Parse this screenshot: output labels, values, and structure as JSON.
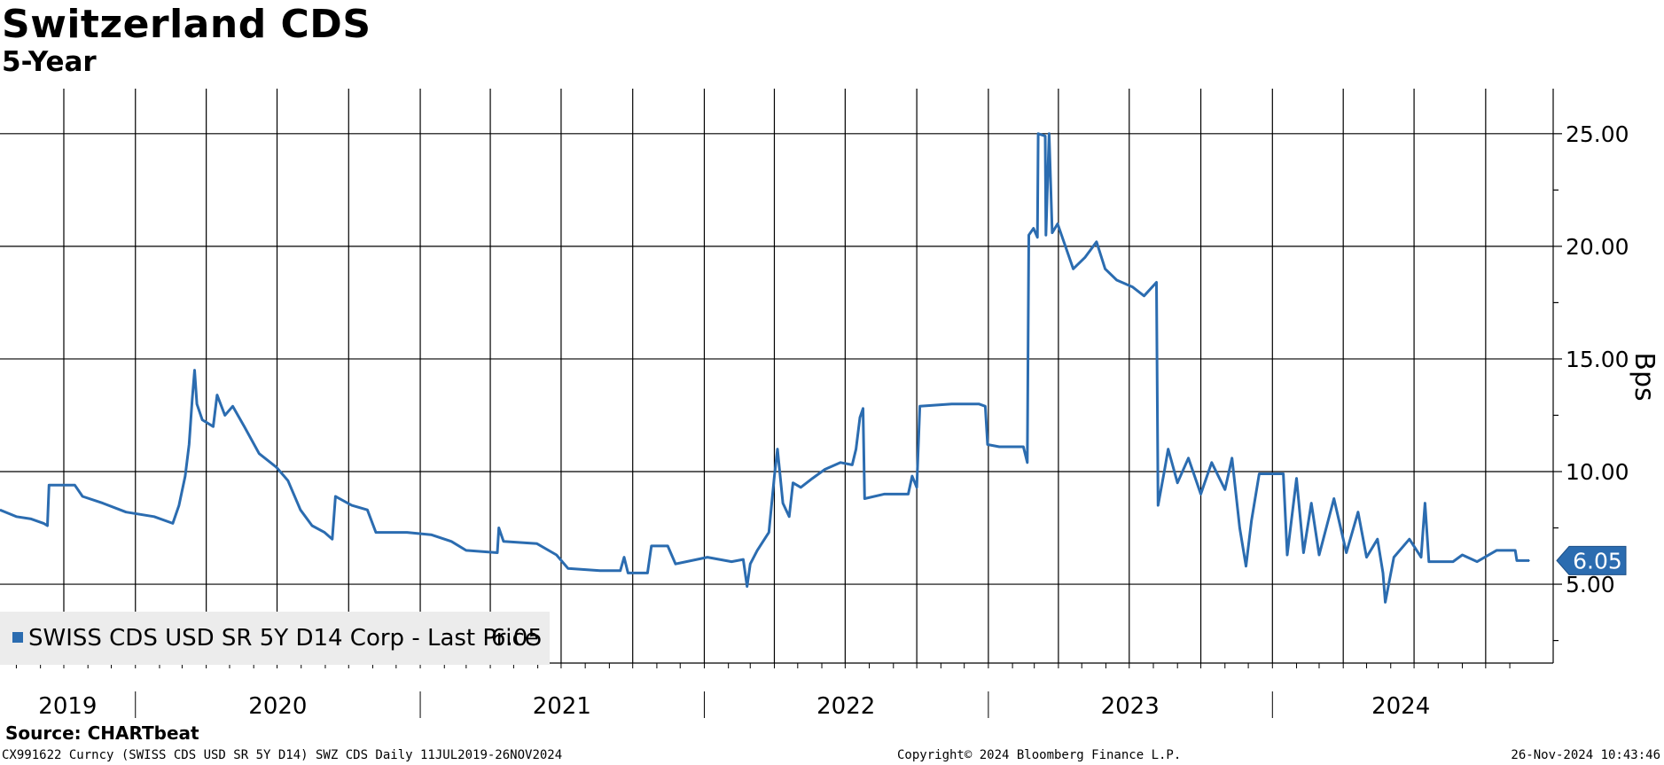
{
  "chart_data": {
    "type": "line",
    "title": "Switzerland CDS",
    "subtitle": "5-Year",
    "ylabel": "Bps",
    "y_axis_side": "right",
    "ylim": [
      1.5,
      27
    ],
    "yticks": [
      5,
      10,
      15,
      20,
      25
    ],
    "ytick_labels": [
      "5.00",
      "10.00",
      "15.00",
      "20.00",
      "25.00"
    ],
    "x_range": [
      "2019-07-11",
      "2024-11-26"
    ],
    "xtick_labels": [
      "2019",
      "2020",
      "2021",
      "2022",
      "2023",
      "2024"
    ],
    "grid": true,
    "legend_position": "bottom-left",
    "last_price_label": "6.05",
    "series": [
      {
        "name": "SWISS CDS USD SR 5Y D14 Corp - Last Price",
        "last_value": "6.05",
        "color": "#2b6cb0",
        "points": [
          [
            "2019-07-11",
            8.3
          ],
          [
            "2019-08-01",
            8.0
          ],
          [
            "2019-08-20",
            7.9
          ],
          [
            "2019-09-05",
            7.7
          ],
          [
            "2019-09-10",
            7.6
          ],
          [
            "2019-09-12",
            9.4
          ],
          [
            "2019-10-15",
            9.4
          ],
          [
            "2019-10-25",
            8.9
          ],
          [
            "2019-11-20",
            8.6
          ],
          [
            "2019-12-20",
            8.2
          ],
          [
            "2020-01-25",
            8.0
          ],
          [
            "2020-02-18",
            7.7
          ],
          [
            "2020-02-26",
            8.5
          ],
          [
            "2020-03-05",
            9.8
          ],
          [
            "2020-03-10",
            11.2
          ],
          [
            "2020-03-14",
            13.2
          ],
          [
            "2020-03-17",
            14.5
          ],
          [
            "2020-03-20",
            13.0
          ],
          [
            "2020-03-27",
            12.3
          ],
          [
            "2020-04-10",
            12.0
          ],
          [
            "2020-04-15",
            13.4
          ],
          [
            "2020-04-25",
            12.5
          ],
          [
            "2020-05-05",
            12.9
          ],
          [
            "2020-05-20",
            12.0
          ],
          [
            "2020-06-08",
            10.8
          ],
          [
            "2020-06-30",
            10.2
          ],
          [
            "2020-07-15",
            9.6
          ],
          [
            "2020-07-31",
            8.3
          ],
          [
            "2020-08-15",
            7.6
          ],
          [
            "2020-08-31",
            7.3
          ],
          [
            "2020-09-10",
            7.0
          ],
          [
            "2020-09-14",
            8.9
          ],
          [
            "2020-10-05",
            8.5
          ],
          [
            "2020-10-25",
            8.3
          ],
          [
            "2020-11-05",
            7.3
          ],
          [
            "2020-12-15",
            7.3
          ],
          [
            "2021-01-15",
            7.2
          ],
          [
            "2021-02-10",
            6.9
          ],
          [
            "2021-03-01",
            6.5
          ],
          [
            "2021-04-10",
            6.4
          ],
          [
            "2021-04-12",
            7.5
          ],
          [
            "2021-04-18",
            6.9
          ],
          [
            "2021-05-31",
            6.8
          ],
          [
            "2021-06-25",
            6.3
          ],
          [
            "2021-07-10",
            5.7
          ],
          [
            "2021-08-20",
            5.6
          ],
          [
            "2021-09-15",
            5.6
          ],
          [
            "2021-09-20",
            6.2
          ],
          [
            "2021-09-25",
            5.5
          ],
          [
            "2021-10-20",
            5.5
          ],
          [
            "2021-10-25",
            6.7
          ],
          [
            "2021-11-15",
            6.7
          ],
          [
            "2021-11-25",
            5.9
          ],
          [
            "2022-01-05",
            6.2
          ],
          [
            "2022-02-05",
            6.0
          ],
          [
            "2022-02-20",
            6.1
          ],
          [
            "2022-02-25",
            4.9
          ],
          [
            "2022-03-01",
            5.9
          ],
          [
            "2022-03-10",
            6.5
          ],
          [
            "2022-03-25",
            7.3
          ],
          [
            "2022-04-01",
            9.8
          ],
          [
            "2022-04-05",
            11.0
          ],
          [
            "2022-04-12",
            8.6
          ],
          [
            "2022-04-20",
            8.0
          ],
          [
            "2022-04-25",
            9.5
          ],
          [
            "2022-05-05",
            9.3
          ],
          [
            "2022-05-20",
            9.7
          ],
          [
            "2022-06-05",
            10.1
          ],
          [
            "2022-06-25",
            10.4
          ],
          [
            "2022-07-10",
            10.3
          ],
          [
            "2022-07-15",
            11.0
          ],
          [
            "2022-07-20",
            12.4
          ],
          [
            "2022-07-24",
            12.8
          ],
          [
            "2022-07-26",
            8.8
          ],
          [
            "2022-08-20",
            9.0
          ],
          [
            "2022-09-20",
            9.0
          ],
          [
            "2022-09-25",
            9.8
          ],
          [
            "2022-10-01",
            9.3
          ],
          [
            "2022-10-05",
            12.9
          ],
          [
            "2022-11-15",
            13.0
          ],
          [
            "2022-12-20",
            13.0
          ],
          [
            "2022-12-28",
            12.9
          ],
          [
            "2022-12-31",
            11.2
          ],
          [
            "2023-01-15",
            11.1
          ],
          [
            "2023-02-15",
            11.1
          ],
          [
            "2023-02-20",
            10.4
          ],
          [
            "2023-02-22",
            20.5
          ],
          [
            "2023-02-28",
            20.8
          ],
          [
            "2023-03-05",
            20.4
          ],
          [
            "2023-03-06",
            25.0
          ],
          [
            "2023-03-15",
            24.9
          ],
          [
            "2023-03-16",
            20.5
          ],
          [
            "2023-03-20",
            25.0
          ],
          [
            "2023-03-24",
            20.6
          ],
          [
            "2023-03-31",
            21.0
          ],
          [
            "2023-04-10",
            20.0
          ],
          [
            "2023-04-20",
            19.0
          ],
          [
            "2023-05-05",
            19.5
          ],
          [
            "2023-05-20",
            20.2
          ],
          [
            "2023-05-31",
            19.0
          ],
          [
            "2023-06-15",
            18.5
          ],
          [
            "2023-07-05",
            18.2
          ],
          [
            "2023-07-20",
            17.8
          ],
          [
            "2023-08-05",
            18.4
          ],
          [
            "2023-08-07",
            8.5
          ],
          [
            "2023-08-15",
            10.0
          ],
          [
            "2023-08-20",
            11.0
          ],
          [
            "2023-09-01",
            9.5
          ],
          [
            "2023-09-15",
            10.6
          ],
          [
            "2023-10-01",
            9.0
          ],
          [
            "2023-10-15",
            10.4
          ],
          [
            "2023-11-01",
            9.2
          ],
          [
            "2023-11-10",
            10.6
          ],
          [
            "2023-11-20",
            7.5
          ],
          [
            "2023-11-28",
            5.8
          ],
          [
            "2023-12-05",
            7.8
          ],
          [
            "2023-12-15",
            9.9
          ],
          [
            "2024-01-15",
            9.9
          ],
          [
            "2024-01-20",
            6.3
          ],
          [
            "2024-02-01",
            9.7
          ],
          [
            "2024-02-10",
            6.4
          ],
          [
            "2024-02-20",
            8.6
          ],
          [
            "2024-03-01",
            6.3
          ],
          [
            "2024-03-20",
            8.8
          ],
          [
            "2024-04-05",
            6.4
          ],
          [
            "2024-04-20",
            8.2
          ],
          [
            "2024-05-01",
            6.2
          ],
          [
            "2024-05-15",
            7.0
          ],
          [
            "2024-05-22",
            5.5
          ],
          [
            "2024-05-25",
            4.2
          ],
          [
            "2024-06-05",
            6.2
          ],
          [
            "2024-06-25",
            7.0
          ],
          [
            "2024-07-10",
            6.2
          ],
          [
            "2024-07-15",
            8.6
          ],
          [
            "2024-07-20",
            6.0
          ],
          [
            "2024-08-20",
            6.0
          ],
          [
            "2024-09-01",
            6.3
          ],
          [
            "2024-09-20",
            6.0
          ],
          [
            "2024-10-15",
            6.5
          ],
          [
            "2024-11-08",
            6.5
          ],
          [
            "2024-11-10",
            6.05
          ],
          [
            "2024-11-26",
            6.05
          ]
        ]
      }
    ]
  },
  "source": "Source:  CHARTbeat",
  "footer": {
    "left": "CX991622 Curncy (SWISS CDS USD SR 5Y D14) SWZ CDS  Daily 11JUL2019-26NOV2024",
    "center": "Copyright© 2024 Bloomberg Finance L.P.",
    "right": "26-Nov-2024 10:43:46"
  }
}
